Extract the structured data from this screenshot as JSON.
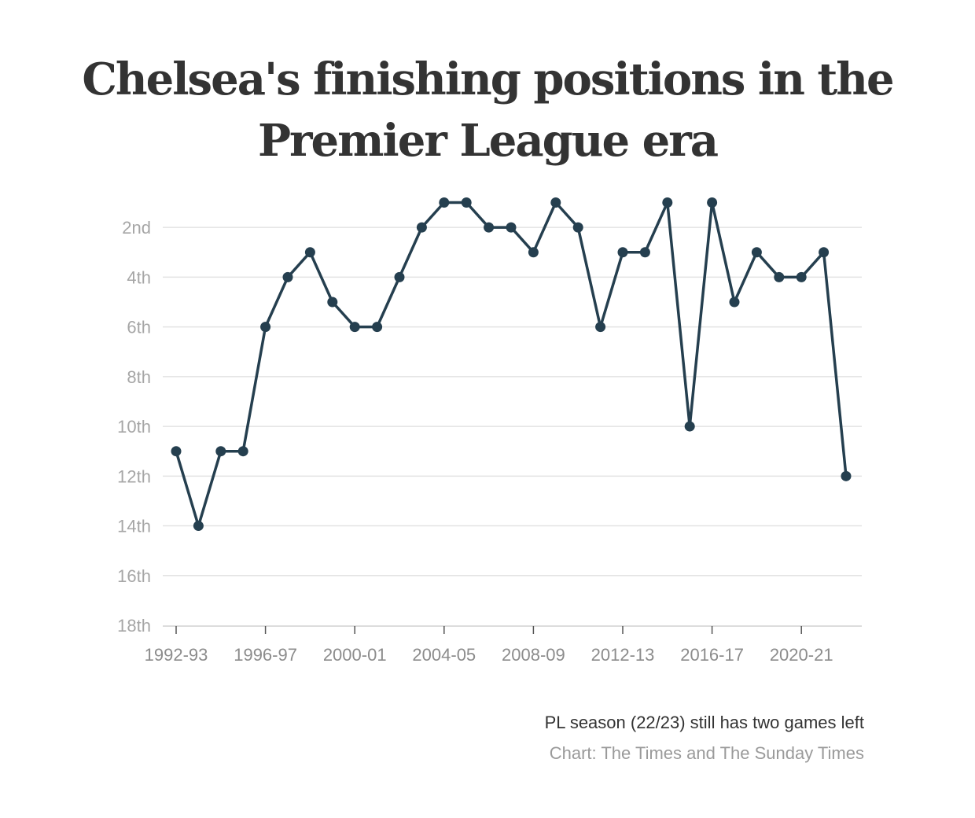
{
  "chart_data": {
    "type": "line",
    "title_lines": [
      "Chelsea's finishing positions in the",
      "Premier League era"
    ],
    "x": [
      "1992-93",
      "1993-94",
      "1994-95",
      "1995-96",
      "1996-97",
      "1997-98",
      "1998-99",
      "1999-00",
      "2000-01",
      "2001-02",
      "2002-03",
      "2003-04",
      "2004-05",
      "2005-06",
      "2006-07",
      "2007-08",
      "2008-09",
      "2009-10",
      "2010-11",
      "2011-12",
      "2012-13",
      "2013-14",
      "2014-15",
      "2015-16",
      "2016-17",
      "2017-18",
      "2018-19",
      "2019-20",
      "2020-21",
      "2021-22",
      "2022-23"
    ],
    "series": [
      {
        "values": [
          11,
          14,
          11,
          11,
          6,
          4,
          3,
          5,
          6,
          6,
          4,
          2,
          1,
          1,
          2,
          2,
          3,
          1,
          2,
          6,
          3,
          3,
          1,
          10,
          1,
          5,
          3,
          4,
          4,
          3,
          12
        ],
        "color": "#253f4f"
      }
    ],
    "x_tick_labels": [
      "1992-93",
      "1996-97",
      "2000-01",
      "2004-05",
      "2008-09",
      "2012-13",
      "2016-17",
      "2020-21"
    ],
    "y_ticks": [
      2,
      4,
      6,
      8,
      10,
      12,
      14,
      16,
      18
    ],
    "y_tick_labels": [
      "2nd",
      "4th",
      "6th",
      "8th",
      "10th",
      "12th",
      "14th",
      "16th",
      "18th"
    ],
    "ylim": [
      1,
      18
    ],
    "y_inverted": true,
    "grid": true,
    "legend": "none",
    "colors": {
      "line": "#253f4f",
      "grid": "#e3e3e3",
      "axis": "#555555"
    }
  },
  "footnote": "PL season (22/23) still has two games left",
  "credit": "Chart: The Times and The Sunday Times"
}
